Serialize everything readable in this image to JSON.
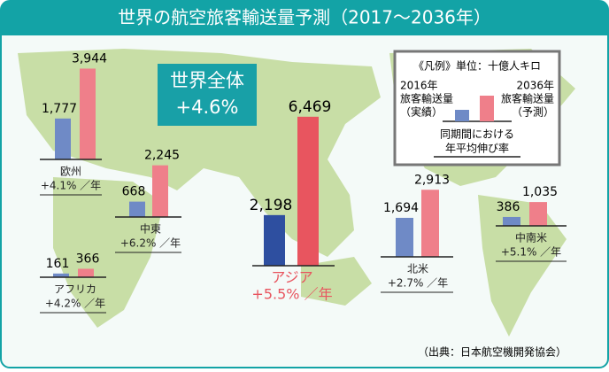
{
  "chart_data": {
    "type": "bar",
    "title": "世界の航空旅客輸送量予測（2017～2036年）",
    "total": {
      "name": "世界全体",
      "growth": "+4.6%"
    },
    "legend_title": "《凡例》単位：十億人キロ",
    "legend_growth": [
      "同期間における",
      "年平均伸び率"
    ],
    "source": "（出典：日本航空機開発協会）",
    "categories": [
      "欧州",
      "中東",
      "アフリカ",
      "アジア",
      "北米",
      "中南米"
    ],
    "growth": [
      "+4.1% ／年",
      "+6.2% ／年",
      "+4.2% ／年",
      "+5.5% ／年",
      "+2.7% ／年",
      "+5.1% ／年"
    ],
    "series": [
      {
        "name": [
          "2016年",
          "旅客輸送量",
          "（実績）"
        ],
        "color": "#6f8ac6",
        "values": [
          1777,
          668,
          161,
          2198,
          1694,
          386
        ],
        "value_labels": [
          "1,777",
          "668",
          "161",
          "2,198",
          "1,694",
          "386"
        ]
      },
      {
        "name": [
          "2036年",
          "旅客輸送量",
          "（予測）"
        ],
        "color": "#ef7f8a",
        "values": [
          3944,
          2245,
          366,
          6469,
          2913,
          1035
        ],
        "value_labels": [
          "3,944",
          "2,245",
          "366",
          "6,469",
          "2,913",
          "1,035"
        ]
      }
    ]
  }
}
